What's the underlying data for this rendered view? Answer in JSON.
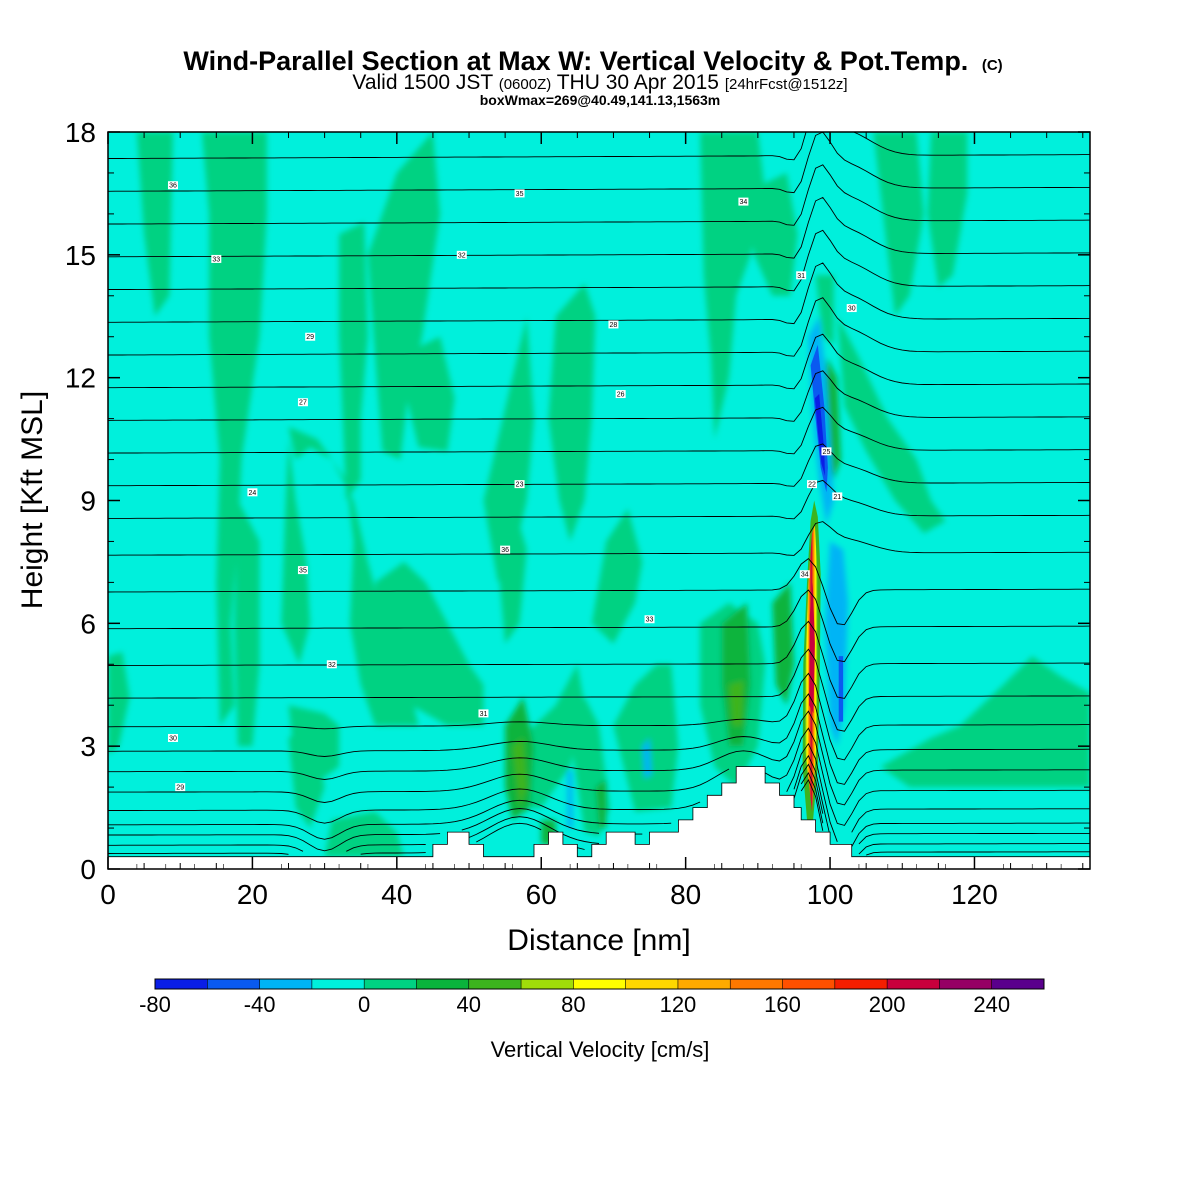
{
  "chart_data": {
    "type": "heatmap",
    "title": "Wind-Parallel Section at Max W: Vertical Velocity & Pot.Temp.",
    "title_mark": "(C)",
    "subtitle": {
      "prefix": "Valid 1500 JST",
      "utc": "(0600Z)",
      "date": "THU 30 Apr 2015",
      "fcst": "[24hrFcst@1512z]"
    },
    "subtitle2": "boxWmax=269@40.49,141.13,1563m",
    "xlabel": "Distance [nm]",
    "ylabel": "Height [Kft MSL]",
    "xlim": [
      0,
      136
    ],
    "ylim": [
      0,
      18
    ],
    "x_ticks": [
      "0",
      "20",
      "40",
      "60",
      "80",
      "100",
      "120"
    ],
    "y_ticks": [
      "0",
      "3",
      "6",
      "9",
      "12",
      "15",
      "18"
    ],
    "x_tick_values": [
      0,
      20,
      40,
      60,
      80,
      100,
      120
    ],
    "y_tick_values": [
      0,
      3,
      6,
      9,
      12,
      15,
      18
    ],
    "colorbar": {
      "label": "Vertical Velocity [cm/s]",
      "tick_labels": [
        "-80",
        "-40",
        "0",
        "40",
        "80",
        "120",
        "160",
        "200",
        "240"
      ],
      "levels": [
        -80,
        -60,
        -40,
        -20,
        0,
        20,
        40,
        60,
        80,
        100,
        120,
        140,
        160,
        180,
        200,
        220,
        240,
        260
      ],
      "colors": [
        "#0a1ee6",
        "#0a5af0",
        "#00b4f5",
        "#00f0dc",
        "#00d282",
        "#0ab43c",
        "#3cb41e",
        "#a0dc0a",
        "#ffff00",
        "#ffd700",
        "#ffaa00",
        "#ff7800",
        "#ff5000",
        "#f51e00",
        "#c8003c",
        "#960064",
        "#5a008c"
      ]
    },
    "max_w_x": 97.5,
    "potential_temperature_labels": [
      "36",
      "35",
      "34",
      "33",
      "32",
      "31",
      "30",
      "29",
      "28",
      "27",
      "26",
      "25",
      "24",
      "23",
      "22",
      "21"
    ],
    "terrain_profile": [
      [
        0,
        0.3
      ],
      [
        6,
        0.3
      ],
      [
        12,
        0.3
      ],
      [
        18,
        0.3
      ],
      [
        24,
        0.3
      ],
      [
        28,
        0.3
      ],
      [
        32,
        0.3
      ],
      [
        36,
        0.3
      ],
      [
        40,
        0.3
      ],
      [
        45,
        0.3
      ],
      [
        45,
        0.6
      ],
      [
        47,
        0.6
      ],
      [
        47,
        0.9
      ],
      [
        50,
        0.9
      ],
      [
        50,
        0.6
      ],
      [
        52,
        0.6
      ],
      [
        52,
        0.3
      ],
      [
        59,
        0.3
      ],
      [
        59,
        0.6
      ],
      [
        61,
        0.6
      ],
      [
        61,
        0.9
      ],
      [
        63,
        0.9
      ],
      [
        63,
        0.6
      ],
      [
        65,
        0.6
      ],
      [
        65,
        0.3
      ],
      [
        67,
        0.3
      ],
      [
        67,
        0.6
      ],
      [
        69,
        0.6
      ],
      [
        69,
        0.9
      ],
      [
        73,
        0.9
      ],
      [
        73,
        0.6
      ],
      [
        75,
        0.6
      ],
      [
        75,
        0.9
      ],
      [
        79,
        0.9
      ],
      [
        79,
        1.2
      ],
      [
        81,
        1.2
      ],
      [
        81,
        1.5
      ],
      [
        83,
        1.5
      ],
      [
        83,
        1.8
      ],
      [
        85,
        1.8
      ],
      [
        85,
        2.1
      ],
      [
        87,
        2.1
      ],
      [
        87,
        2.5
      ],
      [
        91,
        2.5
      ],
      [
        91,
        2.1
      ],
      [
        93,
        2.1
      ],
      [
        93,
        1.8
      ],
      [
        95,
        1.8
      ],
      [
        95,
        1.5
      ],
      [
        96,
        1.5
      ],
      [
        96,
        1.2
      ],
      [
        98,
        1.2
      ],
      [
        98,
        0.9
      ],
      [
        100,
        0.9
      ],
      [
        100,
        0.6
      ],
      [
        103,
        0.6
      ],
      [
        103,
        0.3
      ],
      [
        136,
        0.3
      ]
    ]
  }
}
